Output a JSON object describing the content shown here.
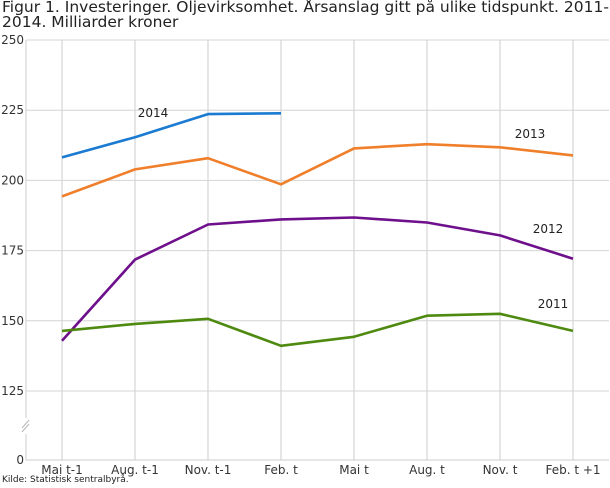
{
  "chart_data": {
    "type": "line",
    "title": "Figur 1. Investeringer. Oljevirksomhet. Årsanslag gitt på ulike tidspunkt. 2011-2014. Milliarder kroner",
    "source": "Kilde: Statistisk sentralbyrå.",
    "categories": [
      "Mai t-1",
      "Aug. t-1",
      "Nov. t-1",
      "Feb. t",
      "Mai t",
      "Aug. t",
      "Nov. t",
      "Feb. t +1"
    ],
    "yticks": [
      0,
      125,
      150,
      175,
      200,
      225,
      250
    ],
    "ylim": [
      0,
      250
    ],
    "axis_break": [
      0,
      125
    ],
    "grid": true,
    "series": [
      {
        "name": "2014",
        "color": "#1a7bd0",
        "values": [
          208.2,
          215.4,
          223.6,
          223.9,
          null,
          null,
          null,
          null
        ],
        "label_at": 1
      },
      {
        "name": "2013",
        "color": "#f07f2b",
        "values": [
          194.3,
          203.9,
          207.9,
          198.6,
          211.4,
          212.9,
          211.8,
          208.9
        ],
        "label_at": 6
      },
      {
        "name": "2012",
        "color": "#6e0f8c",
        "values": [
          142.9,
          171.8,
          184.3,
          186.1,
          186.8,
          185.0,
          180.4,
          172.1
        ],
        "label_at": 7
      },
      {
        "name": "2011",
        "color": "#4f8a10",
        "values": [
          146.4,
          148.9,
          150.7,
          141.1,
          144.3,
          151.8,
          152.5,
          146.4
        ],
        "label_at": 7
      }
    ]
  }
}
